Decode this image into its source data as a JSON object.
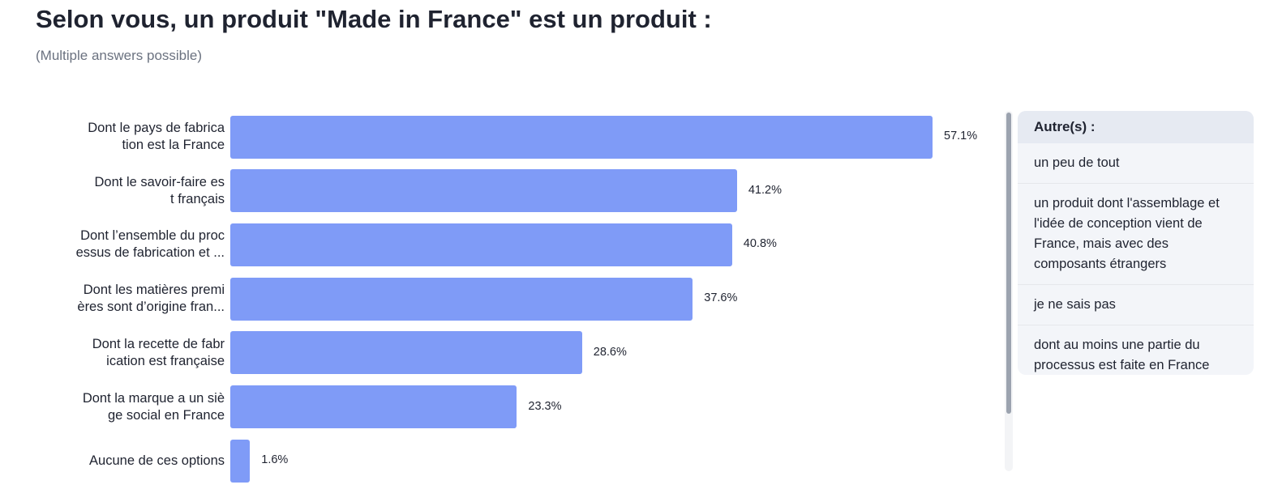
{
  "header": {
    "title": "Selon vous, un produit \"Made in France\" est un produit :",
    "subtitle": "(Multiple answers possible)"
  },
  "chart_data": {
    "type": "bar",
    "orientation": "horizontal",
    "categories": [
      [
        "Dont le pays de fabrica",
        "tion est la France"
      ],
      [
        "Dont le savoir-faire es",
        "t français"
      ],
      [
        "Dont l’ensemble du proc",
        "essus de fabrication et ..."
      ],
      [
        "Dont les matières premi",
        "ères sont d’origine fran..."
      ],
      [
        "Dont la recette de fabr",
        "ication est française"
      ],
      [
        "Dont la marque a un siè",
        "ge social en France"
      ],
      [
        "Aucune de ces options"
      ]
    ],
    "values": [
      57.1,
      41.2,
      40.8,
      37.6,
      28.6,
      23.3,
      1.6
    ],
    "value_labels": [
      "57.1%",
      "41.2%",
      "40.8%",
      "37.6%",
      "28.6%",
      "23.3%",
      "1.6%"
    ],
    "xlim": [
      0,
      57.1
    ],
    "bar_color": "#7f9bf7",
    "grid": false,
    "legend": "none"
  },
  "others_panel": {
    "title": "Autre(s) :",
    "items": [
      "un peu de tout",
      "un produit dont l'assemblage et l'idée de conception vient de France, mais avec des composants étrangers",
      "je ne sais pas",
      "dont au moins une partie du processus est faite en France"
    ]
  }
}
